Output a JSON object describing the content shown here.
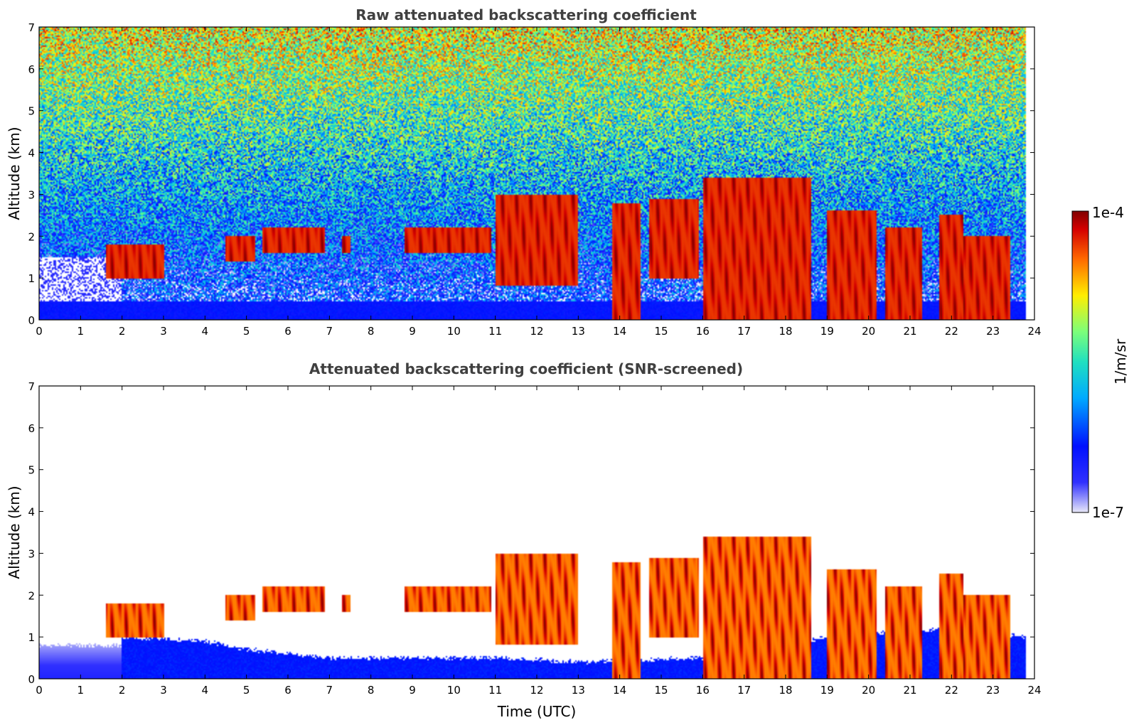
{
  "chart_data": [
    {
      "type": "heatmap",
      "title": "Raw attenuated backscattering coefficient",
      "xlabel": "",
      "ylabel": "Altitude (km)",
      "xlim": [
        0,
        24
      ],
      "ylim": [
        0,
        7
      ],
      "xticks": [
        0,
        1,
        2,
        3,
        4,
        5,
        6,
        7,
        8,
        9,
        10,
        11,
        12,
        13,
        14,
        15,
        16,
        17,
        18,
        19,
        20,
        21,
        22,
        23,
        24
      ],
      "yticks": [
        0,
        1,
        2,
        3,
        4,
        5,
        6,
        7
      ],
      "data_extent_hours": [
        0,
        23.8
      ],
      "background_signal_top_km": 6.9,
      "surface_layer_top_km": 0.5,
      "cloud_features": [
        {
          "t": [
            1.6,
            3.0
          ],
          "alt": [
            1.0,
            1.8
          ]
        },
        {
          "t": [
            4.5,
            5.2
          ],
          "alt": [
            1.4,
            2.0
          ]
        },
        {
          "t": [
            5.4,
            6.9
          ],
          "alt": [
            1.6,
            2.2
          ]
        },
        {
          "t": [
            7.3,
            7.5
          ],
          "alt": [
            1.6,
            2.0
          ]
        },
        {
          "t": [
            8.8,
            10.9
          ],
          "alt": [
            1.6,
            2.2
          ]
        },
        {
          "t": [
            11.0,
            13.0
          ],
          "alt": [
            0.8,
            3.0
          ]
        },
        {
          "t": [
            13.8,
            14.5
          ],
          "alt": [
            0.0,
            2.8
          ]
        },
        {
          "t": [
            14.7,
            15.9
          ],
          "alt": [
            1.0,
            2.9
          ]
        },
        {
          "t": [
            16.0,
            17.0
          ],
          "alt": [
            0.0,
            3.4
          ]
        },
        {
          "t": [
            17.0,
            18.6
          ],
          "alt": [
            0.0,
            3.4
          ]
        },
        {
          "t": [
            19.0,
            20.2
          ],
          "alt": [
            0.0,
            2.6
          ]
        },
        {
          "t": [
            20.4,
            21.3
          ],
          "alt": [
            0.0,
            2.2
          ]
        },
        {
          "t": [
            21.7,
            22.3
          ],
          "alt": [
            0.0,
            2.5
          ]
        },
        {
          "t": [
            22.3,
            23.4
          ],
          "alt": [
            0.0,
            2.0
          ]
        }
      ]
    },
    {
      "type": "heatmap",
      "title": "Attenuated backscattering coefficient (SNR-screened)",
      "xlabel": "Time (UTC)",
      "ylabel": "Altitude (km)",
      "xlim": [
        0,
        24
      ],
      "ylim": [
        0,
        7
      ],
      "xticks": [
        0,
        1,
        2,
        3,
        4,
        5,
        6,
        7,
        8,
        9,
        10,
        11,
        12,
        13,
        14,
        15,
        16,
        17,
        18,
        19,
        20,
        21,
        22,
        23,
        24
      ],
      "yticks": [
        0,
        1,
        2,
        3,
        4,
        5,
        6,
        7
      ],
      "data_extent_hours": [
        0,
        23.8
      ],
      "boundary_layer_top_km": [
        {
          "t": 0.0,
          "alt": 0.8
        },
        {
          "t": 2.0,
          "alt": 0.8
        },
        {
          "t": 2.0,
          "alt": 1.0
        },
        {
          "t": 4.0,
          "alt": 0.9
        },
        {
          "t": 5.0,
          "alt": 0.7
        },
        {
          "t": 7.0,
          "alt": 0.5
        },
        {
          "t": 9.0,
          "alt": 0.5
        },
        {
          "t": 11.0,
          "alt": 0.5
        },
        {
          "t": 13.0,
          "alt": 0.4
        },
        {
          "t": 16.0,
          "alt": 0.5
        },
        {
          "t": 17.0,
          "alt": 0.6
        },
        {
          "t": 19.0,
          "alt": 1.0
        },
        {
          "t": 22.0,
          "alt": 1.2
        },
        {
          "t": 23.8,
          "alt": 1.0
        }
      ]
    }
  ],
  "colorbar": {
    "label": "1/m/sr",
    "min_label": "1e-7",
    "max_label": "1e-4",
    "scale": "log",
    "colors": [
      "#e8e8f8",
      "#0000ff",
      "#00c8ff",
      "#7cff7a",
      "#ffee00",
      "#ff6a00",
      "#c80000",
      "#800000"
    ]
  }
}
